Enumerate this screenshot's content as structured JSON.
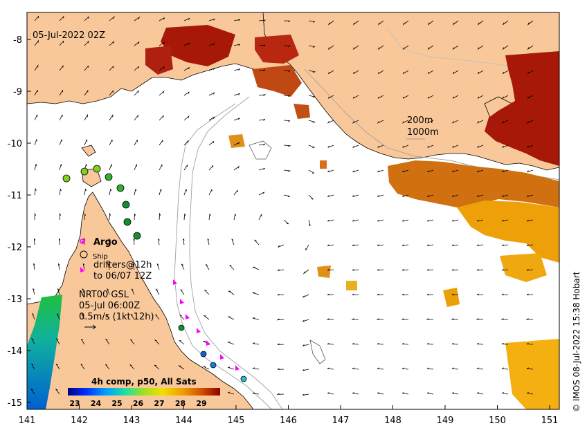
{
  "map": {
    "timestamp": "05-Jul-2022 02Z",
    "credit": "© IMOS 08-Jul-2022 15:38 Hobart",
    "x_ticks": [
      "141",
      "142",
      "143",
      "144",
      "145",
      "146",
      "147",
      "148",
      "149",
      "150",
      "151"
    ],
    "y_ticks": [
      "-8",
      "-9",
      "-10",
      "-11",
      "-12",
      "-13",
      "-14",
      "-15"
    ],
    "contours": {
      "c200": "200m",
      "c1000": "1000m"
    },
    "legend": {
      "argo": "Argo",
      "ship": "Ship",
      "drifters_line1": "drifters@12h",
      "drifters_line2": "to 06/07 12Z",
      "product": "NRT00 GSL",
      "date": "05-Jul 06:00Z",
      "scale": "0.5m/s (1kt 12h)"
    },
    "colorbar": {
      "title": "4h comp, p50, All Sats",
      "ticks": [
        "23",
        "24",
        "25",
        "26",
        "27",
        "28",
        "29"
      ]
    },
    "colors": {
      "land": "#f9c89a",
      "warm": "#a81808",
      "orange": "#e0800f",
      "yellow": "#f4b800",
      "argo": "#ff00ff",
      "coastline": "#000000",
      "isobath": "#a0a0a0"
    }
  }
}
